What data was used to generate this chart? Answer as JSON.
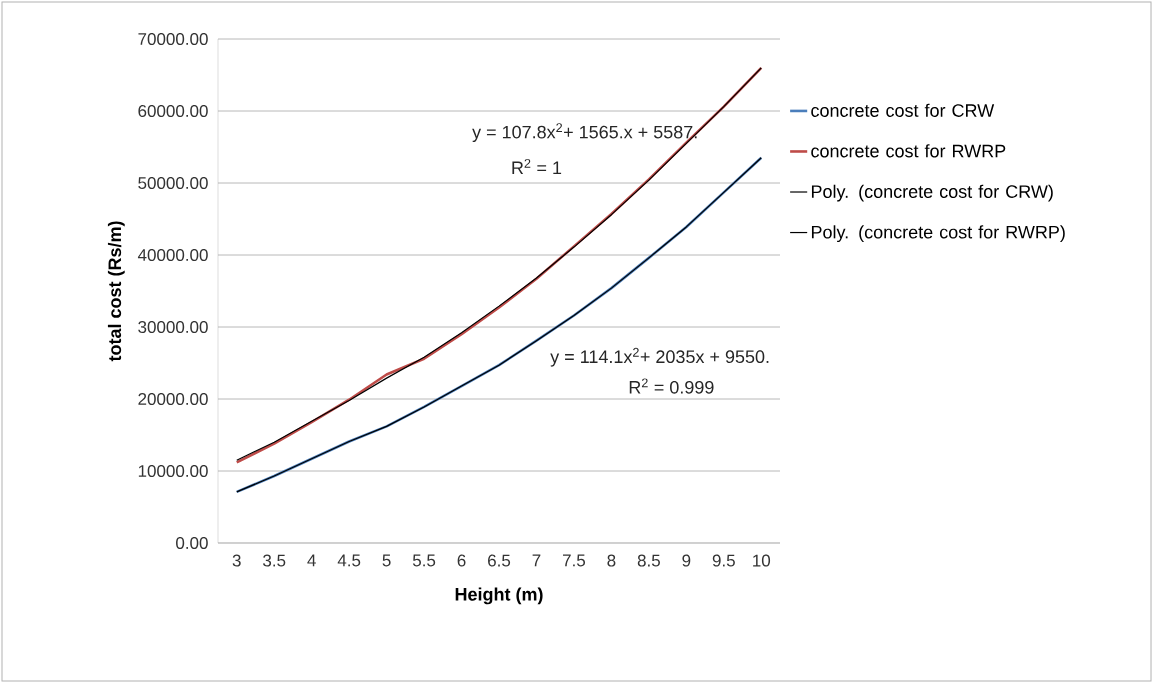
{
  "chart_data": {
    "type": "line",
    "xlabel": "Height (m)",
    "ylabel": "total cost (Rs/m)",
    "categories": [
      "3",
      "3.5",
      "4",
      "4.5",
      "5",
      "5.5",
      "6",
      "6.5",
      "7",
      "7.5",
      "8",
      "8.5",
      "9",
      "9.5",
      "10"
    ],
    "series": [
      {
        "name": "concrete cost for CRW",
        "color": "#4a7ebb",
        "values": [
          7100,
          9300,
          11700,
          14100,
          16200,
          18900,
          21800,
          24700,
          28100,
          31600,
          35400,
          39600,
          43900,
          48700,
          53500
        ]
      },
      {
        "name": "concrete cost for RWRP",
        "color": "#be4b48",
        "values": [
          11200,
          13800,
          16800,
          19900,
          23400,
          25600,
          29000,
          32700,
          36700,
          41200,
          45700,
          50500,
          55600,
          60600,
          66000
        ]
      },
      {
        "name": "Poly. (concrete cost for CRW)",
        "color": "#000000",
        "values": [
          7100,
          9300,
          11700,
          14100,
          16200,
          18900,
          21800,
          24700,
          28100,
          31600,
          35400,
          39600,
          43900,
          48700,
          53500
        ]
      },
      {
        "name": "Poly. (concrete cost for RWRP)",
        "color": "#000000",
        "values": [
          11500,
          14000,
          16900,
          19800,
          22900,
          25800,
          29200,
          32900,
          36800,
          41100,
          45600,
          50400,
          55500,
          60600,
          66000
        ]
      }
    ],
    "ylim": [
      0,
      70000
    ],
    "yticks": [
      {
        "value": 0,
        "label": "0.00"
      },
      {
        "value": 10000,
        "label": "10000.00"
      },
      {
        "value": 20000,
        "label": "20000.00"
      },
      {
        "value": 30000,
        "label": "30000.00"
      },
      {
        "value": 40000,
        "label": "40000.00"
      },
      {
        "value": 50000,
        "label": "50000.00"
      },
      {
        "value": 60000,
        "label": "60000.00"
      },
      {
        "value": 70000,
        "label": "70000.00"
      }
    ],
    "grid": "y",
    "legend": "right",
    "marker": "none",
    "line_style": "solid",
    "annotations": [
      "y = 107.8x$^{2}$+ 1565.x + 5587.",
      "R$^{2}$ = 1",
      "y = 114.1x$^{2}$+ 2035x + 9550.",
      "R$^{2}$ = 0.999"
    ]
  }
}
